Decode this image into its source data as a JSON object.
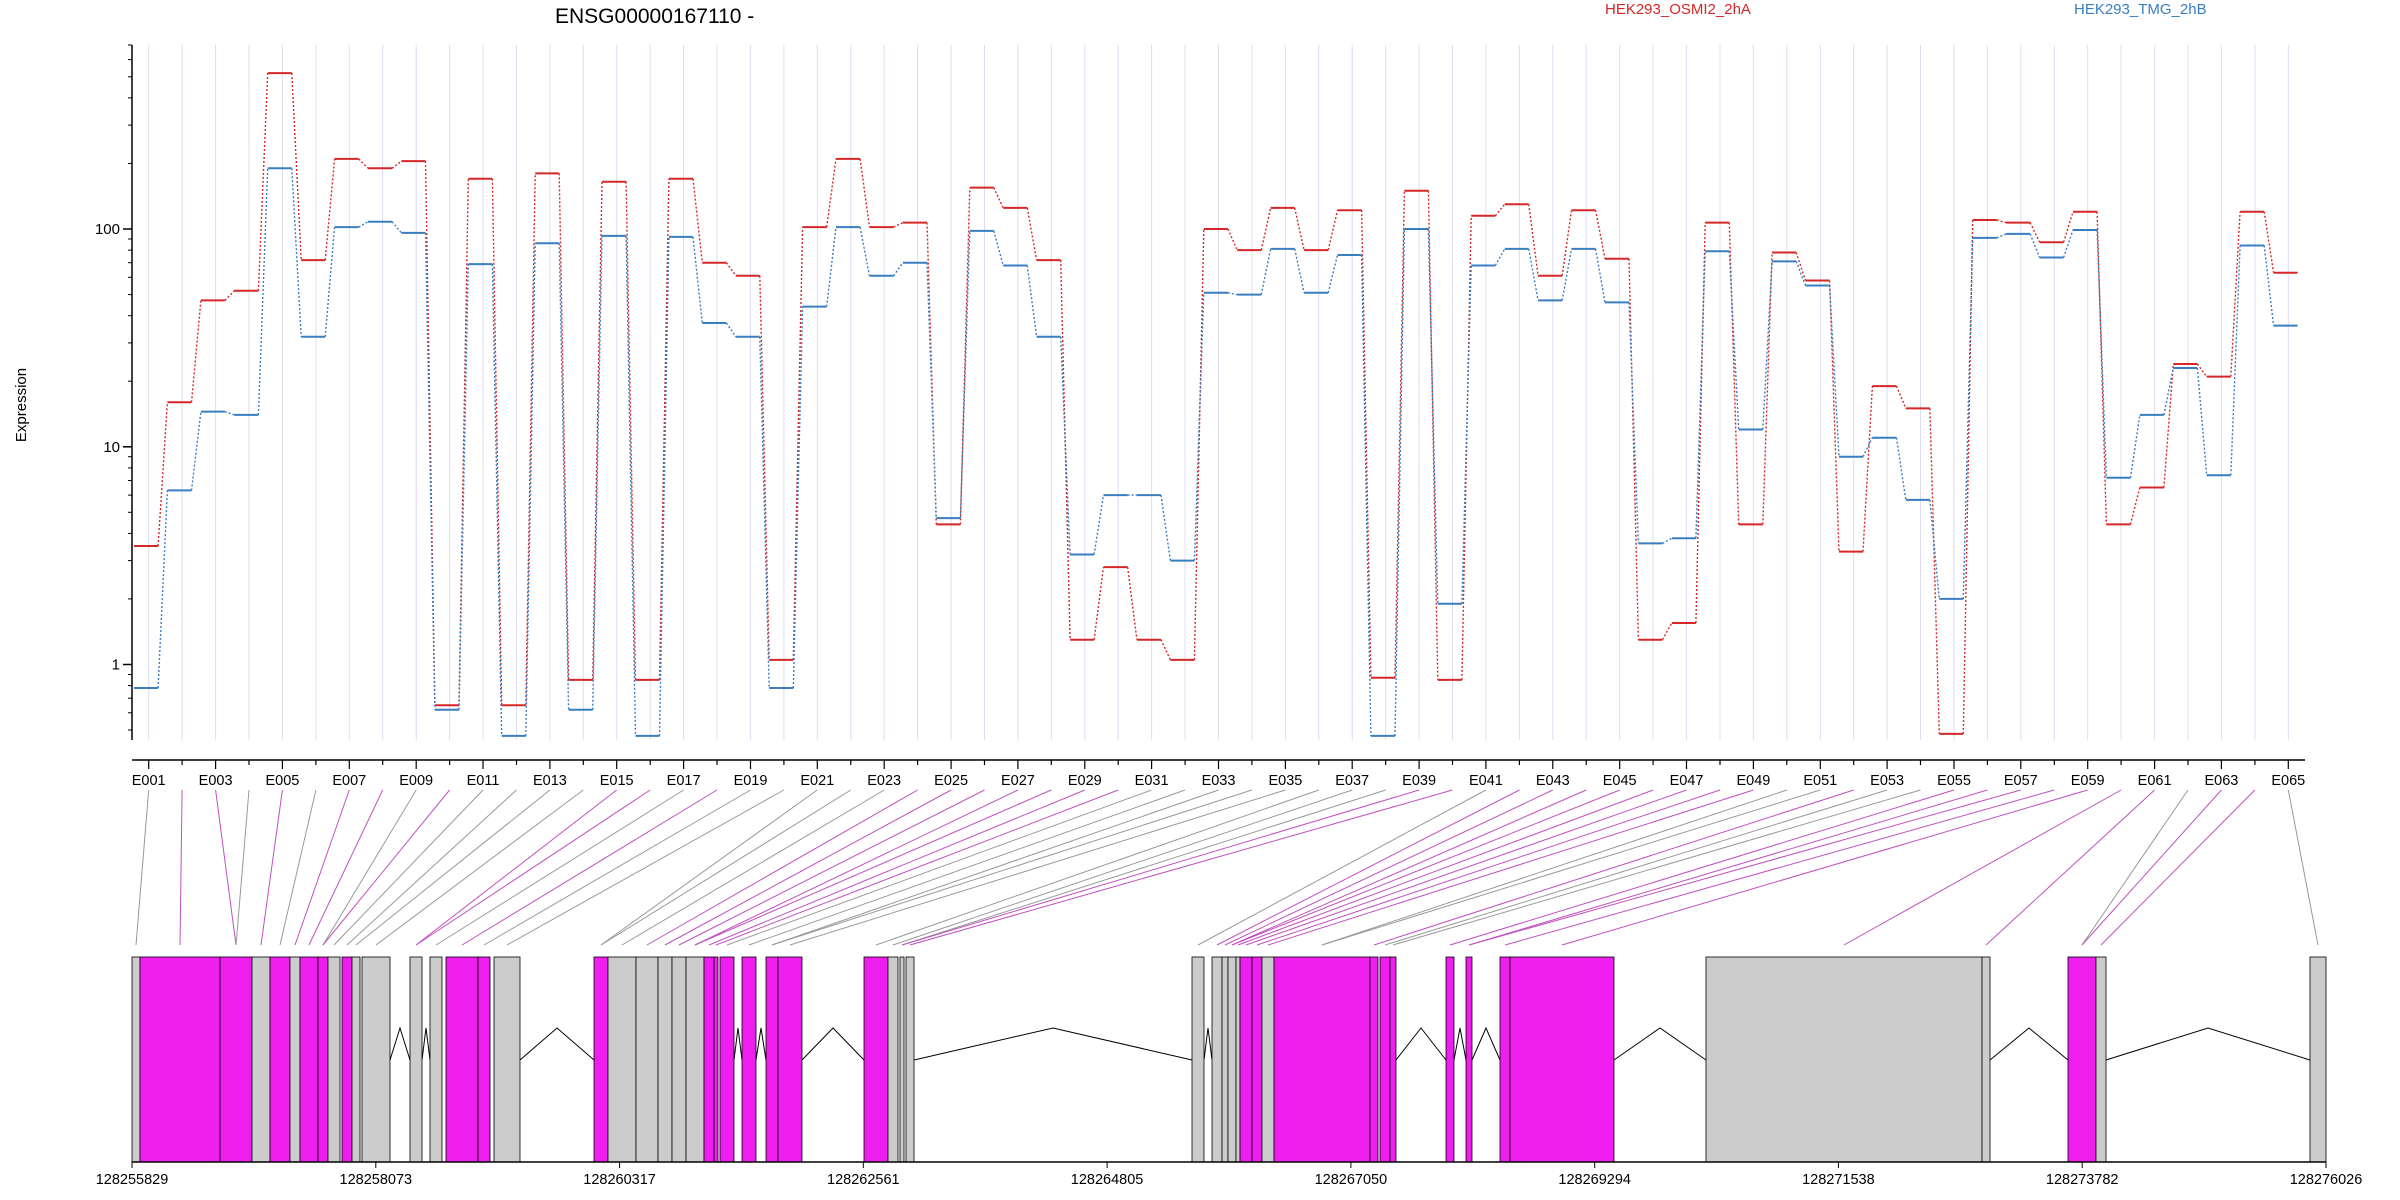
{
  "chart_data": {
    "type": "line",
    "title": "ENSG00000167110 -",
    "ylabel": "Expression",
    "yscale": "log",
    "ylim": [
      0.45,
      700
    ],
    "y_ticks": [
      {
        "value": 1,
        "label": "1"
      },
      {
        "value": 10,
        "label": "10"
      },
      {
        "value": 100,
        "label": "100"
      }
    ],
    "categories": [
      "E001",
      "E002",
      "E003",
      "E004",
      "E005",
      "E006",
      "E007",
      "E008",
      "E009",
      "E010",
      "E011",
      "E012",
      "E013",
      "E014",
      "E015",
      "E016",
      "E017",
      "E018",
      "E019",
      "E020",
      "E021",
      "E022",
      "E023",
      "E024",
      "E025",
      "E026",
      "E027",
      "E028",
      "E029",
      "E030",
      "E031",
      "E032",
      "E033",
      "E034",
      "E035",
      "E036",
      "E037",
      "E038",
      "E039",
      "E040",
      "E041",
      "E042",
      "E043",
      "E044",
      "E045",
      "E046",
      "E047",
      "E048",
      "E049",
      "E050",
      "E051",
      "E052",
      "E053",
      "E054",
      "E055",
      "E056",
      "E057",
      "E058",
      "E059",
      "E060",
      "E061",
      "E062",
      "E063",
      "E064",
      "E065"
    ],
    "legend": [
      {
        "name": "HEK293_OSMI2_2hA",
        "color": "#d62728"
      },
      {
        "name": "HEK293_TMG_2hB",
        "color": "#3a7ec0"
      }
    ],
    "series": [
      {
        "name": "HEK293_OSMI2_2hA",
        "color": "#d62728",
        "values": [
          3.5,
          16,
          47,
          52,
          520,
          72,
          210,
          190,
          205,
          0.65,
          170,
          0.65,
          180,
          0.85,
          165,
          0.85,
          170,
          70,
          61,
          1.05,
          102,
          210,
          102,
          107,
          4.4,
          155,
          125,
          72,
          1.3,
          2.8,
          1.3,
          1.05,
          100,
          80,
          125,
          80,
          122,
          0.87,
          150,
          0.85,
          115,
          130,
          61,
          122,
          73,
          1.3,
          1.55,
          107,
          4.4,
          78,
          58,
          3.3,
          19,
          15,
          0.48,
          110,
          107,
          87,
          120,
          4.4,
          6.5,
          24,
          21,
          120,
          63
        ]
      },
      {
        "name": "HEK293_TMG_2hB",
        "color": "#3a7ec0",
        "values": [
          0.78,
          6.3,
          14.5,
          14,
          190,
          32,
          102,
          108,
          96,
          0.62,
          69,
          0.47,
          86,
          0.62,
          93,
          0.47,
          92,
          37,
          32,
          0.78,
          44,
          102,
          61,
          70,
          4.7,
          98,
          68,
          32,
          3.2,
          6,
          6,
          3.0,
          51,
          50,
          81,
          51,
          76,
          0.47,
          100,
          1.9,
          68,
          81,
          47,
          81,
          46,
          3.6,
          3.8,
          79,
          12,
          71,
          55,
          9,
          11,
          5.7,
          2.0,
          91,
          95,
          74,
          99,
          7.2,
          14,
          23,
          7.4,
          84,
          36
        ]
      }
    ],
    "coordinate_labels": [
      "128255829",
      "128258073",
      "128260317",
      "128262561",
      "128264805",
      "128267050",
      "128269294",
      "128271538",
      "128273782",
      "128276026"
    ]
  },
  "gene_model": {
    "exon_color": "#ee1fee",
    "other_color": "#cccccc",
    "exon_flags": [
      0,
      1,
      1,
      0,
      1,
      0,
      1,
      1,
      0,
      1,
      0,
      0,
      0,
      0,
      1,
      1,
      0,
      1,
      0,
      0,
      0,
      0,
      0,
      1,
      1,
      1,
      1,
      1,
      1,
      1,
      0,
      0,
      0,
      0,
      0,
      0,
      0,
      0,
      1,
      1,
      0,
      1,
      1,
      1,
      1,
      1,
      1,
      1,
      1,
      0,
      0,
      1,
      0,
      0,
      1,
      1,
      1,
      1,
      1,
      1,
      1,
      0,
      1,
      1,
      0
    ]
  }
}
